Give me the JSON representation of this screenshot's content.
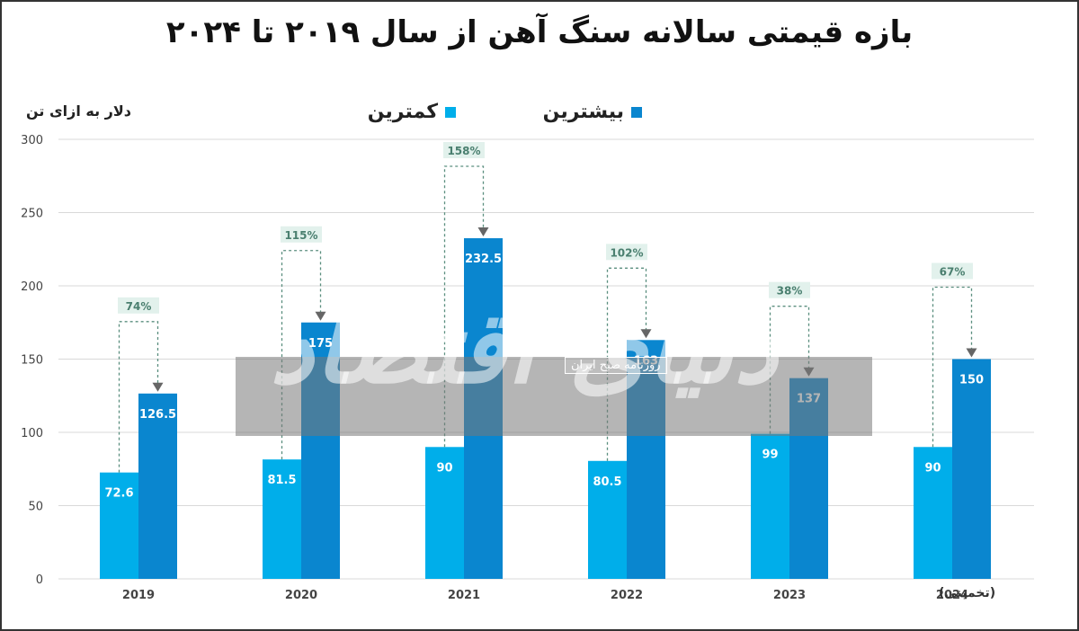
{
  "chart_data": {
    "type": "bar",
    "title": "بازه قیمتی سالانه سنگ آهن از سال ۲۰۱۹ تا ۲۰۲۴",
    "ylabel": "دلار به ازای تن",
    "xlabel": "",
    "ylim": [
      0,
      300
    ],
    "yticks": [
      "0",
      "50",
      "100",
      "150",
      "200",
      "250",
      "300"
    ],
    "grid": true,
    "legend_position": "top-center",
    "categories": [
      "2019",
      "2020",
      "2021",
      "2022",
      "2023",
      "2024"
    ],
    "category_note": "(تخمینی)",
    "series": [
      {
        "name": "کمترین",
        "values": [
          72.6,
          81.5,
          90,
          80.5,
          99,
          90
        ],
        "labels": [
          "72.6",
          "81.5",
          "90",
          "80.5",
          "99",
          "90"
        ],
        "color": "#00aeea"
      },
      {
        "name": "بیشترین",
        "values": [
          126.5,
          175,
          232.5,
          163,
          137,
          150
        ],
        "labels": [
          "126.5",
          "175",
          "232.5",
          "163",
          "137",
          "150"
        ],
        "color": "#0a86cf"
      }
    ],
    "annotations": [
      "74%",
      "115%",
      "158%",
      "102%",
      "38%",
      "67%"
    ]
  },
  "watermark": {
    "main": "دنیای اقتصاد",
    "sub": "روزنامه صبح ایران"
  }
}
